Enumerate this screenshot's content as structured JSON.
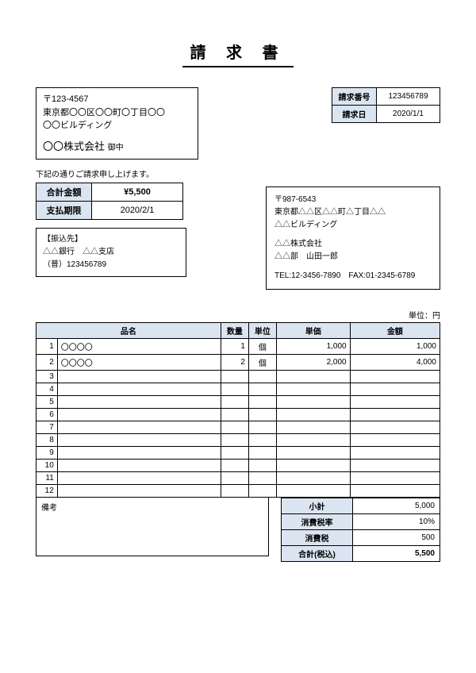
{
  "title": "請 求 書",
  "recipient": {
    "postal": "〒123-4567",
    "addr1": "東京都〇〇区〇〇町〇丁目〇〇",
    "addr2": "〇〇ビルディング",
    "company": "〇〇株式会社",
    "suffix": "御中"
  },
  "meta": {
    "number_label": "請求番号",
    "number": "123456789",
    "date_label": "請求日",
    "date": "2020/1/1"
  },
  "notice": "下記の通りご請求申し上げます。",
  "summary": {
    "total_label": "合計金額",
    "total": "¥5,500",
    "due_label": "支払期限",
    "due": "2020/2/1"
  },
  "bank": {
    "title": "【振込先】",
    "line1": "△△銀行　△△支店",
    "line2": "（普）123456789"
  },
  "sender": {
    "postal": "〒987-6543",
    "addr1": "東京都△△区△△町△丁目△△",
    "addr2": "△△ビルディング",
    "company": "△△株式会社",
    "person": "△△部　山田一郎",
    "contact": "TEL:12-3456-7890　FAX:01-2345-6789"
  },
  "unit_note": "単位：円",
  "items": {
    "headers": {
      "name": "品名",
      "qty": "数量",
      "unit": "単位",
      "price": "単価",
      "amount": "金額"
    },
    "rows": [
      {
        "n": "1",
        "name": "〇〇〇〇",
        "qty": "1",
        "unit": "個",
        "price": "1,000",
        "amount": "1,000"
      },
      {
        "n": "2",
        "name": "〇〇〇〇",
        "qty": "2",
        "unit": "個",
        "price": "2,000",
        "amount": "4,000"
      },
      {
        "n": "3",
        "name": "",
        "qty": "",
        "unit": "",
        "price": "",
        "amount": ""
      },
      {
        "n": "4",
        "name": "",
        "qty": "",
        "unit": "",
        "price": "",
        "amount": ""
      },
      {
        "n": "5",
        "name": "",
        "qty": "",
        "unit": "",
        "price": "",
        "amount": ""
      },
      {
        "n": "6",
        "name": "",
        "qty": "",
        "unit": "",
        "price": "",
        "amount": ""
      },
      {
        "n": "7",
        "name": "",
        "qty": "",
        "unit": "",
        "price": "",
        "amount": ""
      },
      {
        "n": "8",
        "name": "",
        "qty": "",
        "unit": "",
        "price": "",
        "amount": ""
      },
      {
        "n": "9",
        "name": "",
        "qty": "",
        "unit": "",
        "price": "",
        "amount": ""
      },
      {
        "n": "10",
        "name": "",
        "qty": "",
        "unit": "",
        "price": "",
        "amount": ""
      },
      {
        "n": "11",
        "name": "",
        "qty": "",
        "unit": "",
        "price": "",
        "amount": ""
      },
      {
        "n": "12",
        "name": "",
        "qty": "",
        "unit": "",
        "price": "",
        "amount": ""
      }
    ]
  },
  "remarks_label": "備考",
  "totals": {
    "subtotal_label": "小計",
    "subtotal": "5,000",
    "taxrate_label": "消費税率",
    "taxrate": "10%",
    "tax_label": "消費税",
    "tax": "500",
    "grand_label": "合計(税込)",
    "grand": "5,500"
  },
  "colors": {
    "header_bg": "#dbe5f1"
  }
}
